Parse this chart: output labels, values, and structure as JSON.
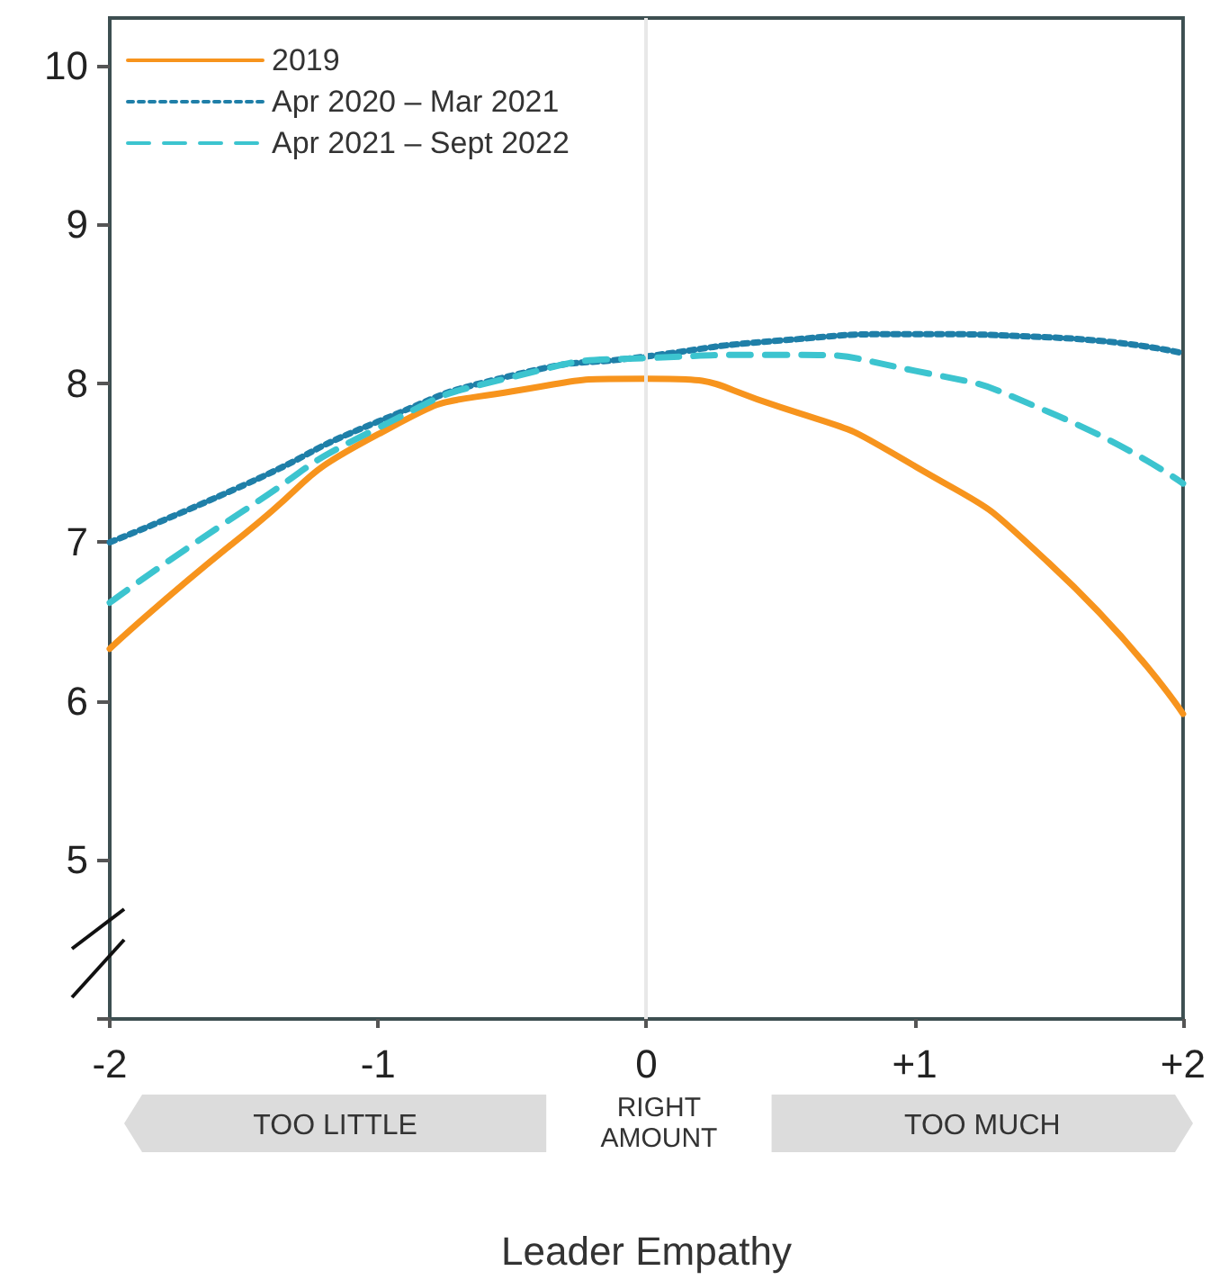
{
  "chart_data": {
    "type": "line",
    "xlabel": "Leader Empathy",
    "x": [
      -2,
      -1.5,
      -1,
      -0.5,
      0,
      0.5,
      1,
      1.5,
      2
    ],
    "series": [
      {
        "name": "2019",
        "color": "#f7941d",
        "line_style": "solid",
        "values": [
          6.33,
          7.05,
          7.68,
          7.95,
          8.03,
          7.85,
          7.48,
          6.87,
          5.92
        ]
      },
      {
        "name": "Apr 2020 – Mar 2021",
        "color": "#1f7fa8",
        "line_style": "dotted",
        "values": [
          7.0,
          7.36,
          7.76,
          8.05,
          8.17,
          8.27,
          8.31,
          8.29,
          8.19
        ]
      },
      {
        "name": "Apr 2021 – Sept 2022",
        "color": "#3cc4cf",
        "line_style": "dashed",
        "values": [
          6.62,
          7.2,
          7.72,
          8.04,
          8.16,
          8.18,
          8.08,
          7.82,
          7.37
        ]
      }
    ],
    "xlim": [
      -2,
      2
    ],
    "xticks": [
      -2,
      -1,
      0,
      {
        "value": 1,
        "label": "+1"
      },
      {
        "value": 2,
        "label": "+2"
      }
    ],
    "ylim": [
      4,
      10.3
    ],
    "yticks": [
      {
        "value": 4,
        "label": null
      },
      5,
      6,
      7,
      8,
      9,
      10
    ],
    "ref_lines": [
      {
        "axis": "x",
        "value": 0,
        "color": "#e8e8e8"
      }
    ],
    "annotations": [
      "TOO LITTLE",
      "RIGHT AMOUNT",
      "TOO MUCH"
    ],
    "legend": "top left",
    "grid": false,
    "marker": "none"
  }
}
